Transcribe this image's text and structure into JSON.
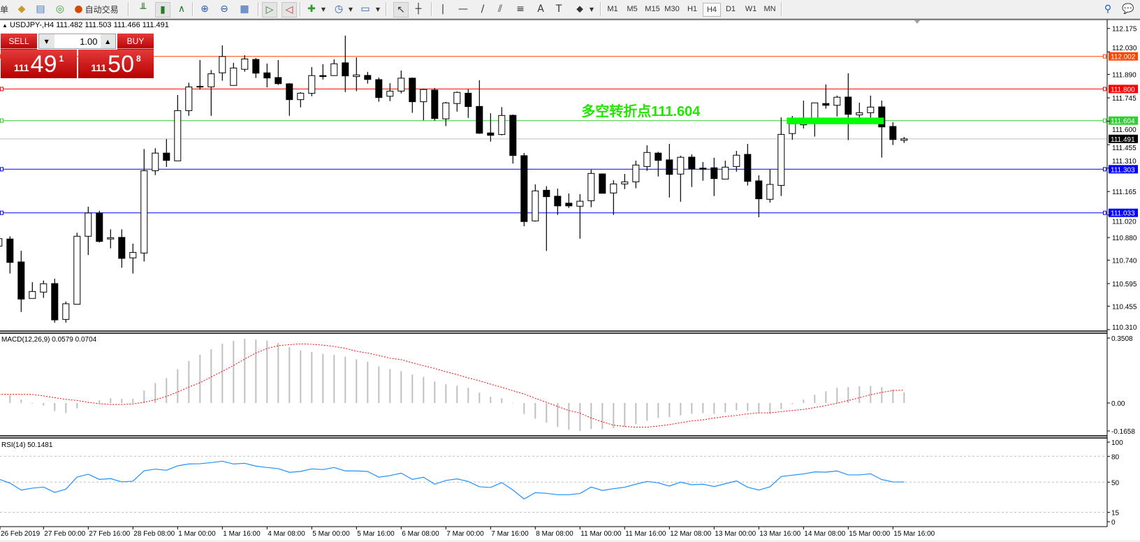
{
  "toolbar": {
    "partial_label": "单",
    "autotrade_label": "自动交易",
    "icons_left": [
      "market-watch-icon",
      "data-window-icon",
      "navigator-icon",
      "signals-icon"
    ],
    "autotrade_icon": "autotrade-icon",
    "chart_type_icons": [
      "bar-chart-icon",
      "candlestick-icon",
      "line-chart-icon"
    ],
    "zoom_icons": [
      "zoom-in-icon",
      "zoom-out-icon",
      "tile-windows-icon"
    ],
    "scroll_icons": [
      "auto-scroll-icon",
      "chart-shift-icon"
    ],
    "dropdown_icons": [
      "indicators-icon",
      "periods-icon",
      "templates-icon"
    ],
    "drawing_icons": [
      "cursor-icon",
      "crosshair-icon",
      "vertical-line-icon",
      "horizontal-line-icon",
      "trendline-icon",
      "equidistant-channel-icon",
      "fibonacci-icon",
      "text-icon",
      "text-label-icon",
      "arrows-icon"
    ],
    "drawing_glyphs": [
      "↖",
      "┼",
      "|",
      "—",
      "/",
      "⫽",
      "≡",
      "A",
      "T",
      "⬥"
    ],
    "timeframes": [
      "M1",
      "M5",
      "M15",
      "M30",
      "H1",
      "H4",
      "D1",
      "W1",
      "MN"
    ],
    "active_timeframe": "H4",
    "right_icons": [
      "search-icon",
      "chat-icon"
    ]
  },
  "chart_header": {
    "symbol": "USDJPY-,H4",
    "ohlc": "111.482 111.503 111.466 111.491"
  },
  "trade_panel": {
    "sell_label": "SELL",
    "buy_label": "BUY",
    "lot": "1.00",
    "sell_price": {
      "prefix": "111",
      "big": "49",
      "sup": "1"
    },
    "buy_price": {
      "prefix": "111",
      "big": "50",
      "sup": "8"
    },
    "color": "#d01c1c"
  },
  "chart_data": {
    "type": "candlestick",
    "symbol": "USDJPY-",
    "timeframe": "H4",
    "ylim": [
      110.31,
      112.175
    ],
    "price_ticks": [
      "112.175",
      "112.030",
      "111.890",
      "111.745",
      "111.600",
      "111.455",
      "111.310",
      "111.165",
      "111.020",
      "110.880",
      "110.740",
      "110.595",
      "110.455",
      "110.310"
    ],
    "candles_format": [
      "time",
      "open",
      "high",
      "low",
      "close"
    ],
    "candles": [
      [
        "2019.02.26 08:00",
        110.827,
        110.881,
        110.824,
        110.873
      ],
      [
        "2019.02.26 12:00",
        110.871,
        110.888,
        110.657,
        110.726
      ],
      [
        "2019.02.26 16:00",
        110.729,
        110.798,
        110.419,
        110.499
      ],
      [
        "2019.02.26 20:00",
        110.503,
        110.604,
        110.503,
        110.546
      ],
      [
        "2019.02.27 00:00",
        110.542,
        110.614,
        110.506,
        110.594
      ],
      [
        "2019.02.27 04:00",
        110.595,
        110.625,
        110.353,
        110.37
      ],
      [
        "2019.02.27 08:00",
        110.373,
        110.484,
        110.353,
        110.47
      ],
      [
        "2019.02.27 12:00",
        110.467,
        110.91,
        110.467,
        110.888
      ],
      [
        "2019.02.27 16:00",
        110.888,
        111.071,
        110.772,
        111.032
      ],
      [
        "2019.02.27 20:00",
        111.032,
        111.046,
        110.849,
        110.856
      ],
      [
        "2019.02.28 00:00",
        110.871,
        110.931,
        110.813,
        110.879
      ],
      [
        "2019.02.28 04:00",
        110.881,
        110.931,
        110.693,
        110.751
      ],
      [
        "2019.02.28 08:00",
        110.754,
        110.842,
        110.657,
        110.788
      ],
      [
        "2019.02.28 12:00",
        110.784,
        111.428,
        110.732,
        111.294
      ],
      [
        "2019.02.28 16:00",
        111.294,
        111.433,
        111.267,
        111.403
      ],
      [
        "2019.02.28 20:00",
        111.403,
        111.49,
        111.317,
        111.358
      ],
      [
        "2019.03.01 00:00",
        111.355,
        111.763,
        111.355,
        111.666
      ],
      [
        "2019.03.01 04:00",
        111.666,
        111.839,
        111.634,
        111.813
      ],
      [
        "2019.03.01 08:00",
        111.813,
        111.979,
        111.796,
        111.816
      ],
      [
        "2019.03.01 12:00",
        111.813,
        111.917,
        111.634,
        111.894
      ],
      [
        "2019.03.01 16:00",
        111.9,
        112.07,
        111.851,
        112.001
      ],
      [
        "2019.03.01 20:00",
        111.822,
        111.962,
        111.822,
        111.93
      ],
      [
        "2019.03.04 00:00",
        111.922,
        112.009,
        111.907,
        111.986
      ],
      [
        "2019.03.04 04:00",
        111.983,
        111.992,
        111.868,
        111.898
      ],
      [
        "2019.03.04 08:00",
        111.9,
        111.957,
        111.81,
        111.868
      ],
      [
        "2019.03.04 12:00",
        111.871,
        111.979,
        111.825,
        111.833
      ],
      [
        "2019.03.04 16:00",
        111.832,
        111.836,
        111.634,
        111.734
      ],
      [
        "2019.03.04 20:00",
        111.734,
        111.78,
        111.686,
        111.774
      ],
      [
        "2019.03.05 00:00",
        111.773,
        111.936,
        111.755,
        111.883
      ],
      [
        "2019.03.05 04:00",
        111.883,
        111.953,
        111.859,
        111.877
      ],
      [
        "2019.03.05 08:00",
        111.883,
        111.983,
        111.883,
        111.956
      ],
      [
        "2019.03.05 12:00",
        111.962,
        112.13,
        111.781,
        111.881
      ],
      [
        "2019.03.05 16:00",
        111.877,
        111.996,
        111.786,
        111.887
      ],
      [
        "2019.03.05 20:00",
        111.884,
        111.906,
        111.833,
        111.859
      ],
      [
        "2019.03.06 00:00",
        111.858,
        111.871,
        111.721,
        111.747
      ],
      [
        "2019.03.06 04:00",
        111.755,
        111.836,
        111.725,
        111.787
      ],
      [
        "2019.03.06 08:00",
        111.787,
        111.914,
        111.773,
        111.867
      ],
      [
        "2019.03.06 12:00",
        111.867,
        111.871,
        111.652,
        111.721
      ],
      [
        "2019.03.06 16:00",
        111.721,
        111.802,
        111.606,
        111.797
      ],
      [
        "2019.03.06 20:00",
        111.793,
        111.806,
        111.604,
        111.617
      ],
      [
        "2019.03.07 00:00",
        111.615,
        111.72,
        111.57,
        111.714
      ],
      [
        "2019.03.07 04:00",
        111.71,
        111.784,
        111.66,
        111.779
      ],
      [
        "2019.03.07 08:00",
        111.774,
        111.799,
        111.621,
        111.691
      ],
      [
        "2019.03.07 12:00",
        111.692,
        111.854,
        111.522,
        111.526
      ],
      [
        "2019.03.07 16:00",
        111.528,
        111.65,
        111.474,
        111.513
      ],
      [
        "2019.03.07 20:00",
        111.518,
        111.688,
        111.513,
        111.636
      ],
      [
        "2019.03.08 00:00",
        111.637,
        111.642,
        111.338,
        111.388
      ],
      [
        "2019.03.08 04:00",
        111.387,
        111.404,
        110.95,
        110.979
      ],
      [
        "2019.03.08 08:00",
        110.983,
        111.209,
        110.979,
        111.169
      ],
      [
        "2019.03.08 12:00",
        111.173,
        111.198,
        110.797,
        111.133
      ],
      [
        "2019.03.08 16:00",
        111.136,
        111.183,
        111.02,
        111.076
      ],
      [
        "2019.03.08 20:00",
        111.093,
        111.153,
        111.063,
        111.076
      ],
      [
        "2019.03.11 00:00",
        111.074,
        111.149,
        110.873,
        111.105
      ],
      [
        "2019.03.11 04:00",
        111.108,
        111.3,
        111.068,
        111.277
      ],
      [
        "2019.03.11 08:00",
        111.274,
        111.277,
        111.154,
        111.154
      ],
      [
        "2019.03.11 12:00",
        111.156,
        111.235,
        111.02,
        111.212
      ],
      [
        "2019.03.11 16:00",
        111.212,
        111.274,
        111.18,
        111.225
      ],
      [
        "2019.03.11 20:00",
        111.225,
        111.356,
        111.185,
        111.329
      ],
      [
        "2019.03.12 00:00",
        111.32,
        111.451,
        111.293,
        111.407
      ],
      [
        "2019.03.12 04:00",
        111.403,
        111.411,
        111.258,
        111.358
      ],
      [
        "2019.03.12 08:00",
        111.361,
        111.46,
        111.128,
        111.271
      ],
      [
        "2019.03.12 12:00",
        111.273,
        111.387,
        111.102,
        111.377
      ],
      [
        "2019.03.12 16:00",
        111.378,
        111.395,
        111.193,
        111.306
      ],
      [
        "2019.03.12 20:00",
        111.31,
        111.348,
        111.232,
        111.303
      ],
      [
        "2019.03.13 00:00",
        111.312,
        111.374,
        111.137,
        111.245
      ],
      [
        "2019.03.13 04:00",
        111.242,
        111.356,
        111.242,
        111.316
      ],
      [
        "2019.03.13 08:00",
        111.32,
        111.417,
        111.288,
        111.39
      ],
      [
        "2019.03.13 12:00",
        111.395,
        111.46,
        111.202,
        111.228
      ],
      [
        "2019.03.13 16:00",
        111.231,
        111.265,
        111.006,
        111.12
      ],
      [
        "2019.03.13 20:00",
        111.117,
        111.301,
        111.097,
        111.209
      ],
      [
        "2019.03.14 00:00",
        111.203,
        111.624,
        111.137,
        111.519
      ],
      [
        "2019.03.14 04:00",
        111.524,
        111.633,
        111.486,
        111.584
      ],
      [
        "2019.03.14 08:00",
        111.578,
        111.728,
        111.555,
        111.614
      ],
      [
        "2019.03.14 12:00",
        111.59,
        111.714,
        111.505,
        111.714
      ],
      [
        "2019.03.14 16:00",
        111.71,
        111.828,
        111.678,
        111.699
      ],
      [
        "2019.03.14 20:00",
        111.699,
        111.759,
        111.63,
        111.749
      ],
      [
        "2019.03.15 00:00",
        111.75,
        111.897,
        111.483,
        111.643
      ],
      [
        "2019.03.15 04:00",
        111.64,
        111.715,
        111.623,
        111.653
      ],
      [
        "2019.03.15 08:00",
        111.653,
        111.759,
        111.623,
        111.688
      ],
      [
        "2019.03.15 12:00",
        111.689,
        111.728,
        111.375,
        111.565
      ],
      [
        "2019.03.15 16:00",
        111.568,
        111.594,
        111.453,
        111.487
      ],
      [
        "2019.03.15 20:00",
        111.482,
        111.503,
        111.466,
        111.491
      ]
    ],
    "bull_color": "#ffffff",
    "bear_color": "#000000",
    "levels": [
      {
        "price": 112.002,
        "label": "112.002",
        "color": "#ff4500"
      },
      {
        "price": 111.8,
        "label": "111.800",
        "color": "#ff0000"
      },
      {
        "price": 111.604,
        "label": "111.604",
        "color": "#32cd32"
      },
      {
        "price": 111.303,
        "label": "111.303",
        "color": "#0000ff"
      },
      {
        "price": 111.033,
        "label": "111.033",
        "color": "#0000ff"
      }
    ],
    "current_price": {
      "price": 111.491,
      "label": "111.491",
      "line_color": "#c0c0c0",
      "label_color": "#000000"
    },
    "zone": {
      "from": "2019.03.14 04:00",
      "to": "2019.03.15 12:00",
      "price_high": 111.623,
      "price_low": 111.582,
      "color": "#00ff00"
    },
    "annotation": {
      "text": "多空转折点111.604",
      "time": "2019.03.11 00:00",
      "price": 111.72,
      "color": "#22e600"
    },
    "time_labels": [
      {
        "time": "2019.02.26 08:00",
        "label": "26 Feb 2019"
      },
      {
        "time": "2019.02.27 00:00",
        "label": "27 Feb 00:00"
      },
      {
        "time": "2019.02.27 16:00",
        "label": "27 Feb 16:00"
      },
      {
        "time": "2019.02.28 08:00",
        "label": "28 Feb 08:00"
      },
      {
        "time": "2019.03.01 00:00",
        "label": "1 Mar 00:00"
      },
      {
        "time": "2019.03.01 16:00",
        "label": "1 Mar 16:00"
      },
      {
        "time": "2019.03.04 08:00",
        "label": "4 Mar 08:00"
      },
      {
        "time": "2019.03.05 00:00",
        "label": "5 Mar 00:00"
      },
      {
        "time": "2019.03.05 16:00",
        "label": "5 Mar 16:00"
      },
      {
        "time": "2019.03.06 08:00",
        "label": "6 Mar 08:00"
      },
      {
        "time": "2019.03.07 00:00",
        "label": "7 Mar 00:00"
      },
      {
        "time": "2019.03.07 16:00",
        "label": "7 Mar 16:00"
      },
      {
        "time": "2019.03.08 08:00",
        "label": "8 Mar 08:00"
      },
      {
        "time": "2019.03.11 00:00",
        "label": "11 Mar 00:00"
      },
      {
        "time": "2019.03.11 16:00",
        "label": "11 Mar 16:00"
      },
      {
        "time": "2019.03.12 08:00",
        "label": "12 Mar 08:00"
      },
      {
        "time": "2019.03.13 00:00",
        "label": "13 Mar 00:00"
      },
      {
        "time": "2019.03.13 16:00",
        "label": "13 Mar 16:00"
      },
      {
        "time": "2019.03.14 08:00",
        "label": "14 Mar 08:00"
      },
      {
        "time": "2019.03.15 00:00",
        "label": "15 Mar 00:00"
      },
      {
        "time": "2019.03.15 16:00",
        "label": "15 Mar 16:00"
      }
    ],
    "macd": {
      "label": "MACD(12,26,9) 0.0579 0.0704",
      "ticks": [
        "0.3508",
        "0.00",
        "-0.1658"
      ],
      "ylim": [
        -0.1658,
        0.3508
      ],
      "hist_color": "#c0c0c0",
      "signal_color": "#ff0000",
      "hist": [
        null,
        0.044,
        0.019,
        -0.003,
        -0.014,
        -0.044,
        -0.055,
        -0.029,
        0.004,
        0.015,
        0.026,
        0.023,
        0.023,
        0.068,
        0.109,
        0.136,
        0.185,
        0.23,
        0.264,
        0.294,
        0.325,
        0.34,
        0.351,
        0.347,
        0.341,
        0.328,
        0.306,
        0.287,
        0.279,
        0.268,
        0.264,
        0.253,
        0.239,
        0.226,
        0.2,
        0.185,
        0.174,
        0.155,
        0.143,
        0.117,
        0.102,
        0.094,
        0.083,
        0.057,
        0.034,
        0.026,
        -0.002,
        -0.06,
        -0.086,
        -0.108,
        -0.131,
        -0.146,
        -0.153,
        -0.142,
        -0.142,
        -0.138,
        -0.131,
        -0.116,
        -0.097,
        -0.082,
        -0.078,
        -0.067,
        -0.059,
        -0.055,
        -0.059,
        -0.052,
        -0.04,
        -0.044,
        -0.052,
        -0.059,
        -0.033,
        -0.006,
        0.019,
        0.045,
        0.064,
        0.083,
        0.087,
        0.091,
        0.094,
        0.087,
        0.075,
        0.0579
      ],
      "signal": [
        0.047,
        0.047,
        0.047,
        0.047,
        0.039,
        0.029,
        0.02,
        0.014,
        0.004,
        -0.004,
        -0.008,
        -0.008,
        -0.005,
        0.004,
        0.018,
        0.036,
        0.06,
        0.087,
        0.111,
        0.142,
        0.173,
        0.205,
        0.24,
        0.273,
        0.298,
        0.313,
        0.319,
        0.323,
        0.321,
        0.316,
        0.309,
        0.299,
        0.283,
        0.273,
        0.26,
        0.245,
        0.237,
        0.22,
        0.204,
        0.189,
        0.171,
        0.155,
        0.137,
        0.122,
        0.103,
        0.086,
        0.067,
        0.049,
        0.026,
        0.004,
        -0.019,
        -0.041,
        -0.055,
        -0.082,
        -0.103,
        -0.121,
        -0.128,
        -0.132,
        -0.132,
        -0.126,
        -0.118,
        -0.108,
        -0.098,
        -0.092,
        -0.082,
        -0.074,
        -0.068,
        -0.059,
        -0.054,
        -0.054,
        -0.047,
        -0.041,
        -0.035,
        -0.025,
        -0.014,
        -0.001,
        0.013,
        0.029,
        0.045,
        0.058,
        0.068,
        0.0704
      ]
    },
    "rsi": {
      "label": "RSI(14) 50.1481",
      "ticks": [
        "100",
        "80",
        "50",
        "15",
        "0"
      ],
      "levels": [
        80,
        50,
        15
      ],
      "ylim": [
        0,
        100
      ],
      "color": "#1e90ff",
      "values": [
        53.5,
        48.9,
        40.8,
        43,
        44.3,
        38.1,
        41.9,
        55.9,
        59.2,
        53.2,
        54.1,
        50.3,
        51.1,
        63.2,
        65.1,
        63.8,
        68.9,
        71.1,
        71.4,
        72.7,
        74.3,
        71.1,
        71.9,
        68.6,
        67,
        65.7,
        61.4,
        62.4,
        65.4,
        64.6,
        67,
        63,
        63,
        62.4,
        55.7,
        57.6,
        60.5,
        53.2,
        55.7,
        47.6,
        51.9,
        53.8,
        50.8,
        44.6,
        43.8,
        49.5,
        40.8,
        30.5,
        37.8,
        37,
        35.4,
        35.4,
        36.8,
        44.3,
        40.3,
        42.4,
        44.1,
        47.6,
        50.8,
        49.2,
        45.4,
        50,
        47,
        47.6,
        44.9,
        48.1,
        51.4,
        44.1,
        40.8,
        44.6,
        56.5,
        58.1,
        59.5,
        61.9,
        61.6,
        63,
        58.4,
        58.4,
        59.7,
        53,
        50.3,
        50.1481
      ]
    }
  }
}
